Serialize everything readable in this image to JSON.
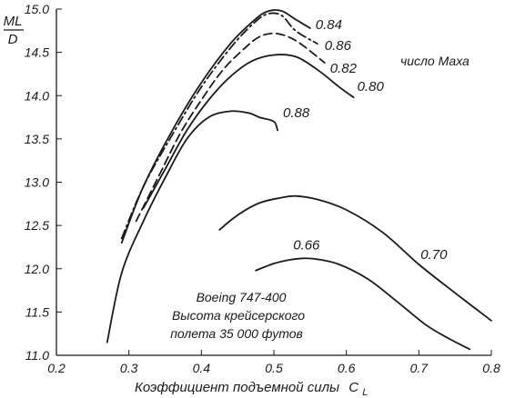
{
  "chart_data": {
    "type": "line",
    "xlabel": "Коэффициент подъемной силы",
    "xlabel_symbol": "C",
    "xlabel_sub": "L",
    "ylabel_top": "ML",
    "ylabel_bottom": "D",
    "xlim": [
      0.2,
      0.8
    ],
    "ylim": [
      11.0,
      15.0
    ],
    "x_ticks": [
      "0.2",
      "0.3",
      "0.4",
      "0.5",
      "0.6",
      "0.7",
      "0.8"
    ],
    "y_ticks": [
      "11.0",
      "11.5",
      "12.0",
      "12.5",
      "13.0",
      "13.5",
      "14.0",
      "14.5",
      "15.0"
    ],
    "legend_title": "число Маха",
    "annotation_lines": [
      "Boeing 747-400",
      "Высота крейсерского",
      "полета 35 000 футов"
    ],
    "series": [
      {
        "name": "0.84",
        "style": "solid",
        "x": [
          0.29,
          0.32,
          0.36,
          0.4,
          0.44,
          0.47,
          0.49,
          0.51,
          0.53,
          0.55
        ],
        "y": [
          12.3,
          12.95,
          13.6,
          14.15,
          14.6,
          14.85,
          14.97,
          14.98,
          14.88,
          14.78
        ]
      },
      {
        "name": "0.86",
        "style": "dash-dot",
        "x": [
          0.29,
          0.32,
          0.36,
          0.4,
          0.44,
          0.47,
          0.49,
          0.51,
          0.53,
          0.56
        ],
        "y": [
          12.35,
          12.95,
          13.55,
          14.1,
          14.55,
          14.82,
          14.94,
          14.93,
          14.75,
          14.6
        ]
      },
      {
        "name": "0.82",
        "style": "dashed",
        "x": [
          0.31,
          0.34,
          0.37,
          0.4,
          0.43,
          0.46,
          0.48,
          0.5,
          0.52,
          0.54,
          0.57
        ],
        "y": [
          12.55,
          13.05,
          13.55,
          13.95,
          14.3,
          14.55,
          14.68,
          14.72,
          14.68,
          14.58,
          14.38
        ]
      },
      {
        "name": "0.80",
        "style": "solid",
        "x": [
          0.32,
          0.35,
          0.38,
          0.41,
          0.44,
          0.47,
          0.5,
          0.53,
          0.56,
          0.59,
          0.61
        ],
        "y": [
          12.7,
          13.15,
          13.6,
          13.95,
          14.22,
          14.4,
          14.47,
          14.45,
          14.3,
          14.1,
          13.98
        ]
      },
      {
        "name": "0.88",
        "style": "solid",
        "x": [
          0.27,
          0.29,
          0.32,
          0.35,
          0.38,
          0.41,
          0.44,
          0.465,
          0.48,
          0.5,
          0.505
        ],
        "y": [
          11.15,
          11.95,
          12.55,
          13.05,
          13.5,
          13.75,
          13.82,
          13.8,
          13.75,
          13.7,
          13.6
        ]
      },
      {
        "name": "0.70",
        "style": "solid",
        "x": [
          0.425,
          0.45,
          0.48,
          0.51,
          0.53,
          0.56,
          0.6,
          0.65,
          0.7,
          0.75,
          0.8
        ],
        "y": [
          12.45,
          12.62,
          12.76,
          12.82,
          12.84,
          12.8,
          12.68,
          12.42,
          12.05,
          11.72,
          11.4
        ]
      },
      {
        "name": "0.66",
        "style": "solid",
        "x": [
          0.475,
          0.5,
          0.52,
          0.54,
          0.56,
          0.59,
          0.63,
          0.67,
          0.71,
          0.74,
          0.77
        ],
        "y": [
          11.98,
          12.06,
          12.1,
          12.12,
          12.11,
          12.05,
          11.88,
          11.62,
          11.35,
          11.2,
          11.07
        ]
      }
    ]
  }
}
